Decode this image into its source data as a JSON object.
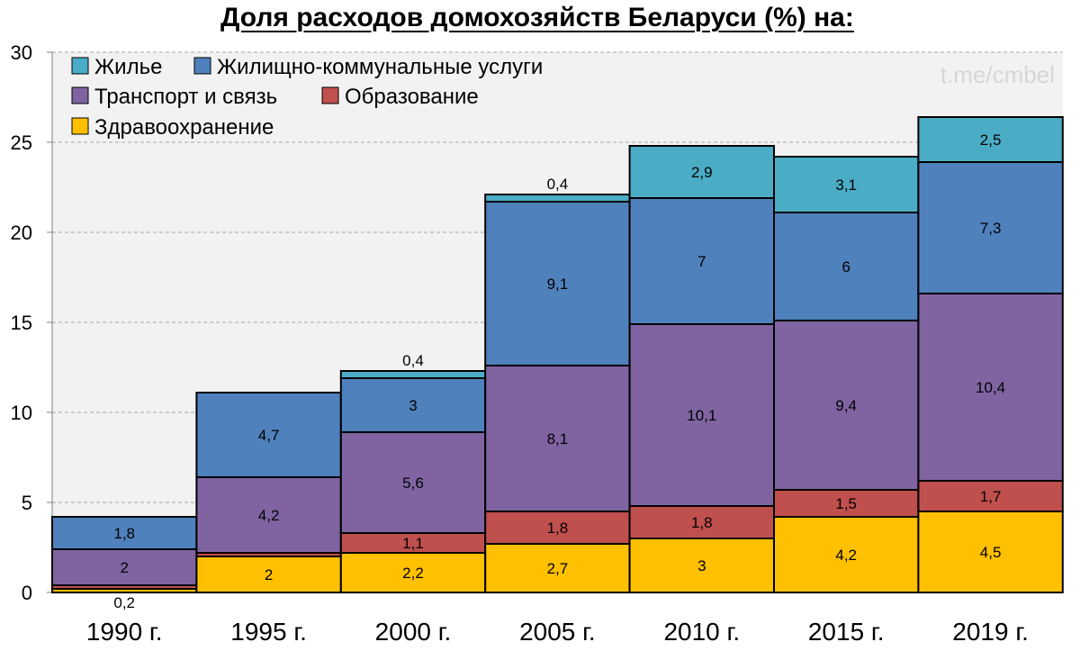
{
  "chart_data": {
    "type": "bar",
    "stacked": true,
    "title": "Доля расходов домохозяйств Беларуси (%) на:",
    "watermark": "t.me/cmbel",
    "categories": [
      "1990 г.",
      "1995 г.",
      "2000 г.",
      "2005 г.",
      "2010 г.",
      "2015 г.",
      "2019 г."
    ],
    "ylim": [
      0,
      30
    ],
    "yticks": [
      0,
      5,
      10,
      15,
      20,
      25,
      30
    ],
    "grid": true,
    "legend_position": "top-left",
    "series": [
      {
        "name": "Здравоохранение",
        "color": "#ffc000",
        "values": [
          0.2,
          2,
          2.2,
          2.7,
          3,
          4.2,
          4.5
        ],
        "labels": [
          "0,2",
          "2",
          "2,2",
          "2,7",
          "3",
          "4,2",
          "4,5"
        ]
      },
      {
        "name": "Образование",
        "color": "#c0504d",
        "values": [
          0.2,
          0.2,
          1.1,
          1.8,
          1.8,
          1.5,
          1.7
        ],
        "labels": [
          "",
          "",
          "1,1",
          "1,8",
          "1,8",
          "1,5",
          "1,7"
        ]
      },
      {
        "name": "Транспорт и связь",
        "color": "#8064a2",
        "values": [
          2,
          4.2,
          5.6,
          8.1,
          10.1,
          9.4,
          10.4
        ],
        "labels": [
          "2",
          "4,2",
          "5,6",
          "8,1",
          "10,1",
          "9,4",
          "10,4"
        ]
      },
      {
        "name": "Жилищно-коммунальные услуги",
        "color": "#4f81bd",
        "values": [
          1.8,
          4.7,
          3,
          9.1,
          7,
          6,
          7.3
        ],
        "labels": [
          "1,8",
          "4,7",
          "3",
          "9,1",
          "7",
          "6",
          "7,3"
        ]
      },
      {
        "name": "Жилье",
        "color": "#4bacc6",
        "values": [
          0,
          0,
          0.4,
          0.4,
          2.9,
          3.1,
          2.5
        ],
        "labels": [
          "",
          "",
          "0,4",
          "0,4",
          "2,9",
          "3,1",
          "2,5"
        ]
      }
    ],
    "legend_order": [
      "Жилье",
      "Жилищно-коммунальные услуги",
      "Транспорт и связь",
      "Образование",
      "Здравоохранение"
    ]
  }
}
